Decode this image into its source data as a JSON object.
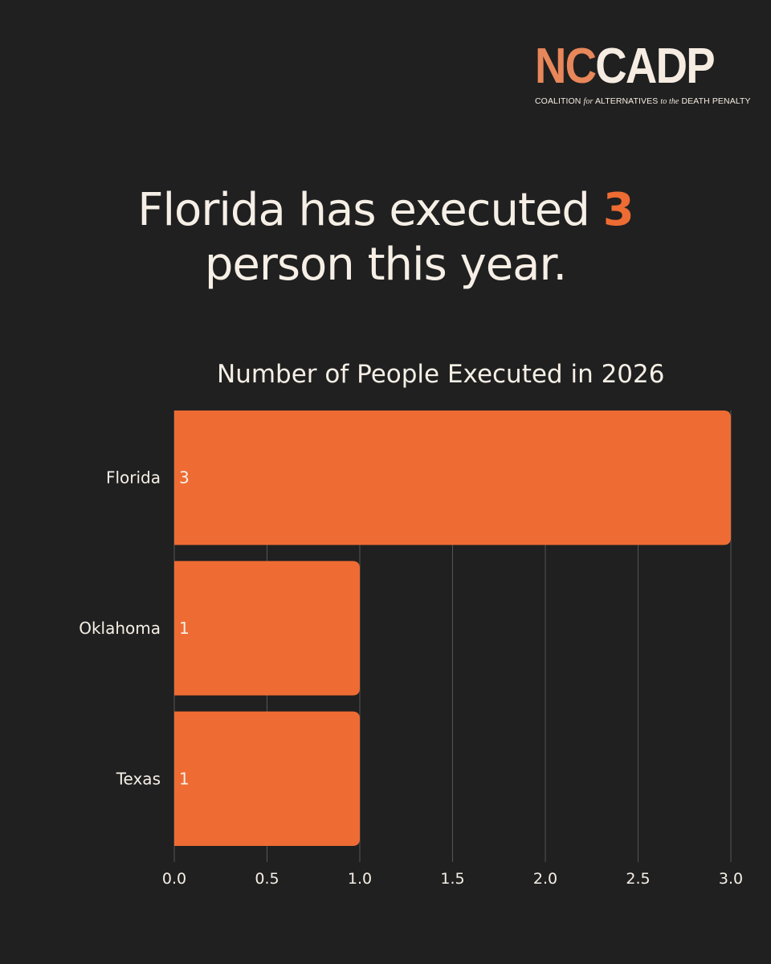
{
  "logo": {
    "nc": "NC",
    "cadp": "CADP",
    "sub_1": "COALITION ",
    "sub_2": "for",
    "sub_3": " ALTERNATIVES ",
    "sub_4": "to the",
    "sub_5": " DEATH PENALTY"
  },
  "headline": {
    "before": "Florida has executed ",
    "number": "3",
    "after": "person this year."
  },
  "colors": {
    "background": "#202020",
    "accent": "#EE6C33",
    "bar": "#EE6C33",
    "text": "#F6EFE6",
    "grid": "#555555"
  },
  "chart_data": {
    "type": "bar",
    "orientation": "horizontal",
    "title": "Number of People Executed in 2026",
    "categories": [
      "Florida",
      "Oklahoma",
      "Texas"
    ],
    "values": [
      3,
      1,
      1
    ],
    "data_labels": [
      "3",
      "1",
      "1"
    ],
    "xlim": [
      0,
      3
    ],
    "xticks": [
      0,
      0.5,
      1,
      1.5,
      2,
      2.5,
      3
    ],
    "xtick_labels": [
      "0.0",
      "0.5",
      "1.0",
      "1.5",
      "2.0",
      "2.5",
      "3.0"
    ],
    "grid": "vertical",
    "legend": "none"
  }
}
